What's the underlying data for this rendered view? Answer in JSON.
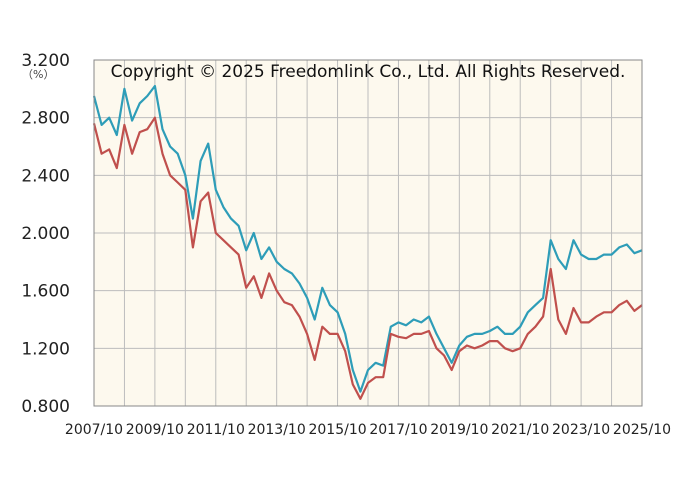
{
  "chart_data": {
    "type": "line",
    "unit_label": "（%）",
    "copyright": "Copyright © 2025 Freedomlink Co., Ltd. All Rights Reserved.",
    "ylim": [
      0.8,
      3.2
    ],
    "y_ticks": [
      "0.800",
      "1.200",
      "1.600",
      "2.000",
      "2.400",
      "2.800",
      "3.200"
    ],
    "x_ticks": [
      "2007/10",
      "2009/10",
      "2011/10",
      "2013/10",
      "2015/10",
      "2017/10",
      "2019/10",
      "2021/10",
      "2023/10",
      "2025/10"
    ],
    "grid": true,
    "colors": {
      "plot_bg": "#fdf9ee",
      "grid": "#bdbdbd",
      "series_1": "#2e9db8",
      "series_2": "#c0504d"
    },
    "x": [
      2007.75,
      2008.0,
      2008.25,
      2008.5,
      2008.75,
      2009.0,
      2009.25,
      2009.5,
      2009.75,
      2010.0,
      2010.25,
      2010.5,
      2010.75,
      2011.0,
      2011.25,
      2011.5,
      2011.75,
      2012.0,
      2012.25,
      2012.5,
      2012.75,
      2013.0,
      2013.25,
      2013.5,
      2013.75,
      2014.0,
      2014.25,
      2014.5,
      2014.75,
      2015.0,
      2015.25,
      2015.5,
      2015.75,
      2016.0,
      2016.25,
      2016.5,
      2016.75,
      2017.0,
      2017.25,
      2017.5,
      2017.75,
      2018.0,
      2018.25,
      2018.5,
      2018.75,
      2019.0,
      2019.25,
      2019.5,
      2019.75,
      2020.0,
      2020.25,
      2020.5,
      2020.75,
      2021.0,
      2021.25,
      2021.5,
      2021.75,
      2022.0,
      2022.25,
      2022.5,
      2022.75,
      2023.0,
      2023.25,
      2023.5,
      2023.75,
      2024.0,
      2024.25,
      2024.5,
      2024.75,
      2025.0,
      2025.25,
      2025.5,
      2025.75
    ],
    "series": [
      {
        "values": [
          2.95,
          2.75,
          2.8,
          2.68,
          3.0,
          2.78,
          2.9,
          2.95,
          3.02,
          2.72,
          2.6,
          2.55,
          2.4,
          2.1,
          2.5,
          2.62,
          2.3,
          2.18,
          2.1,
          2.05,
          1.88,
          2.0,
          1.82,
          1.9,
          1.8,
          1.75,
          1.72,
          1.65,
          1.55,
          1.4,
          1.62,
          1.5,
          1.45,
          1.3,
          1.05,
          0.9,
          1.05,
          1.1,
          1.08,
          1.35,
          1.38,
          1.36,
          1.4,
          1.38,
          1.42,
          1.3,
          1.2,
          1.1,
          1.22,
          1.28,
          1.3,
          1.3,
          1.32,
          1.35,
          1.3,
          1.3,
          1.35,
          1.45,
          1.5,
          1.55,
          1.95,
          1.82,
          1.75,
          1.95,
          1.85,
          1.82,
          1.82,
          1.85,
          1.85,
          1.9,
          1.92,
          1.86,
          1.88
        ]
      },
      {
        "values": [
          2.76,
          2.55,
          2.58,
          2.45,
          2.75,
          2.55,
          2.7,
          2.72,
          2.8,
          2.55,
          2.4,
          2.35,
          2.3,
          1.9,
          2.22,
          2.28,
          2.0,
          1.95,
          1.9,
          1.85,
          1.62,
          1.7,
          1.55,
          1.72,
          1.6,
          1.52,
          1.5,
          1.42,
          1.3,
          1.12,
          1.35,
          1.3,
          1.3,
          1.18,
          0.95,
          0.85,
          0.96,
          1.0,
          1.0,
          1.3,
          1.28,
          1.27,
          1.3,
          1.3,
          1.32,
          1.2,
          1.15,
          1.05,
          1.18,
          1.22,
          1.2,
          1.22,
          1.25,
          1.25,
          1.2,
          1.18,
          1.2,
          1.3,
          1.35,
          1.42,
          1.75,
          1.4,
          1.3,
          1.48,
          1.38,
          1.38,
          1.42,
          1.45,
          1.45,
          1.5,
          1.53,
          1.46,
          1.5
        ]
      }
    ]
  }
}
